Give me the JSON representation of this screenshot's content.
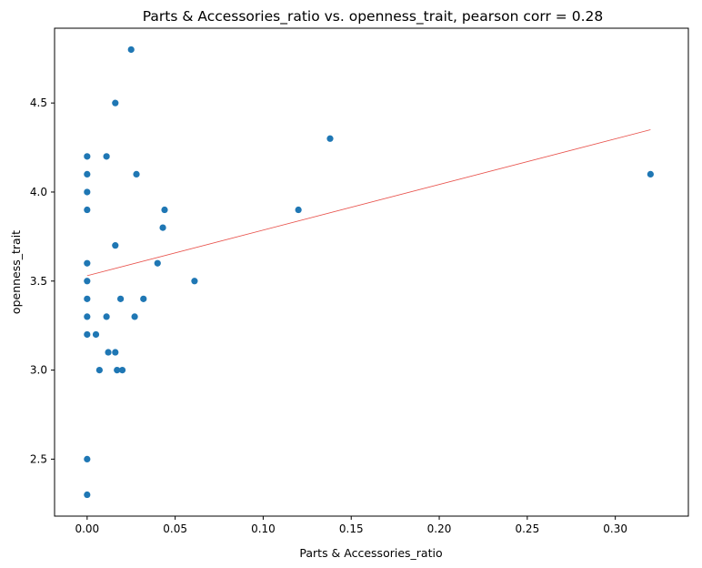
{
  "chart_data": {
    "type": "scatter",
    "title": "Parts & Accessories_ratio vs. openness_trait, pearson corr = 0.28",
    "xlabel": "Parts & Accessories_ratio",
    "ylabel": "openness_trait",
    "xlim": [
      -0.0185,
      0.3415
    ],
    "ylim": [
      2.18,
      4.92
    ],
    "x_ticks": [
      0.0,
      0.05,
      0.1,
      0.15,
      0.2,
      0.25,
      0.3
    ],
    "x_tick_labels": [
      "0.00",
      "0.05",
      "0.10",
      "0.15",
      "0.20",
      "0.25",
      "0.30"
    ],
    "y_ticks": [
      2.5,
      3.0,
      3.5,
      4.0,
      4.5
    ],
    "y_tick_labels": [
      "2.5",
      "3.0",
      "3.5",
      "4.0",
      "4.5"
    ],
    "grid": false,
    "point_color": "#1f77b4",
    "fit_line_color": "#e8514b",
    "points": [
      {
        "x": 0.0,
        "y": 4.2
      },
      {
        "x": 0.0,
        "y": 4.1
      },
      {
        "x": 0.0,
        "y": 4.0
      },
      {
        "x": 0.0,
        "y": 3.9
      },
      {
        "x": 0.0,
        "y": 3.6
      },
      {
        "x": 0.0,
        "y": 3.5
      },
      {
        "x": 0.0,
        "y": 3.4
      },
      {
        "x": 0.0,
        "y": 3.3
      },
      {
        "x": 0.0,
        "y": 3.2
      },
      {
        "x": 0.0,
        "y": 2.5
      },
      {
        "x": 0.0,
        "y": 2.3
      },
      {
        "x": 0.005,
        "y": 3.2
      },
      {
        "x": 0.007,
        "y": 3.0
      },
      {
        "x": 0.011,
        "y": 4.2
      },
      {
        "x": 0.011,
        "y": 3.3
      },
      {
        "x": 0.012,
        "y": 3.1
      },
      {
        "x": 0.016,
        "y": 4.5
      },
      {
        "x": 0.016,
        "y": 3.7
      },
      {
        "x": 0.016,
        "y": 3.1
      },
      {
        "x": 0.017,
        "y": 3.0
      },
      {
        "x": 0.019,
        "y": 3.4
      },
      {
        "x": 0.02,
        "y": 3.0
      },
      {
        "x": 0.025,
        "y": 4.8
      },
      {
        "x": 0.027,
        "y": 3.3
      },
      {
        "x": 0.028,
        "y": 4.1
      },
      {
        "x": 0.032,
        "y": 3.4
      },
      {
        "x": 0.04,
        "y": 3.6
      },
      {
        "x": 0.043,
        "y": 3.8
      },
      {
        "x": 0.044,
        "y": 3.9
      },
      {
        "x": 0.061,
        "y": 3.5
      },
      {
        "x": 0.12,
        "y": 3.9
      },
      {
        "x": 0.138,
        "y": 4.3
      },
      {
        "x": 0.32,
        "y": 4.1
      }
    ],
    "fit_line": {
      "x": [
        0.0,
        0.32
      ],
      "y": [
        3.53,
        4.35
      ]
    }
  }
}
